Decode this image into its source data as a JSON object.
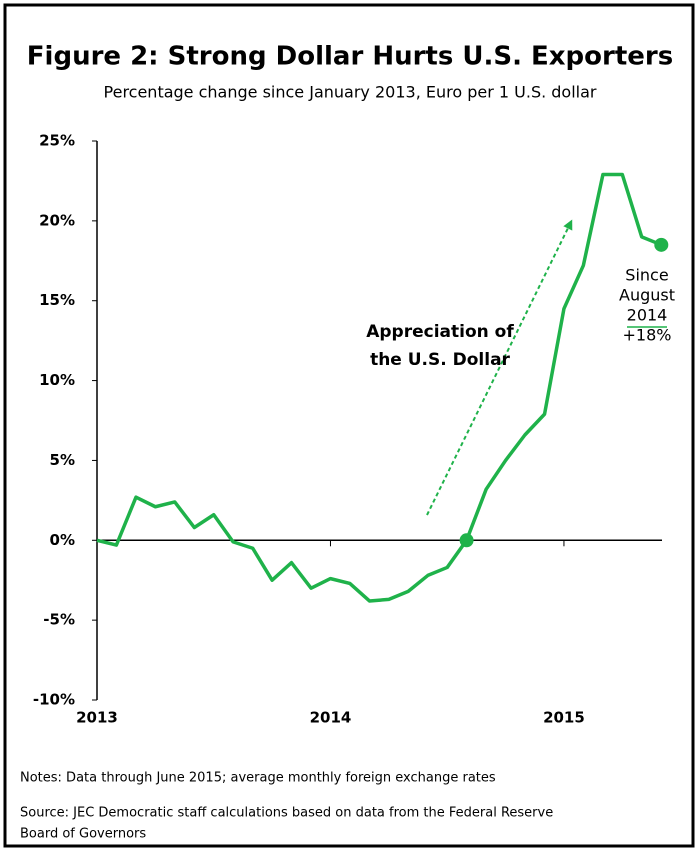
{
  "chart_data": {
    "type": "line",
    "title": "Figure 2: Strong Dollar Hurts U.S. Exporters",
    "subtitle": "Percentage change since January 2013, Euro per 1 U.S. dollar",
    "x": [
      2013,
      2013.083,
      2013.167,
      2013.25,
      2013.333,
      2013.417,
      2013.5,
      2013.583,
      2013.667,
      2013.75,
      2013.833,
      2013.917,
      2014,
      2014.083,
      2014.167,
      2014.25,
      2014.333,
      2014.417,
      2014.5,
      2014.583,
      2014.667,
      2014.75,
      2014.833,
      2014.917,
      2015,
      2015.083,
      2015.167,
      2015.25,
      2015.333,
      2015.417
    ],
    "series": [
      {
        "name": "Euro per 1 U.S. dollar",
        "color": "#1fb24a",
        "values": [
          0,
          -0.3,
          2.7,
          2.1,
          2.4,
          0.8,
          1.6,
          -0.1,
          -0.5,
          -2.5,
          -1.4,
          -3.0,
          -2.4,
          -2.7,
          -3.8,
          -3.7,
          -3.2,
          -2.2,
          -1.7,
          0.0,
          3.2,
          5.0,
          6.6,
          7.9,
          14.5,
          17.2,
          22.9,
          22.9,
          19.0,
          18.5
        ]
      }
    ],
    "xlim": [
      2013,
      2015.42
    ],
    "xticks": [
      2013,
      2014,
      2015
    ],
    "ylim": [
      -10,
      25
    ],
    "yticks": [
      {
        "value": -10,
        "label": "-10%"
      },
      {
        "value": -5,
        "label": "-5%"
      },
      {
        "value": 0,
        "label": "0%"
      },
      {
        "value": 5,
        "label": "5%"
      },
      {
        "value": 10,
        "label": "10%"
      },
      {
        "value": 15,
        "label": "15%"
      },
      {
        "value": 20,
        "label": "20%"
      },
      {
        "value": 25,
        "label": "25%"
      }
    ],
    "annotations": {
      "arrow_label": [
        "Appreciation of",
        "the U.S. Dollar"
      ],
      "end_label": [
        "Since",
        "August",
        "2014",
        "+18%"
      ]
    },
    "notes": "Notes: Data through June 2015; average monthly foreign exchange rates",
    "source": [
      "Source: JEC Democratic staff calculations based on data from the Federal Reserve",
      "Board of Governors"
    ]
  }
}
